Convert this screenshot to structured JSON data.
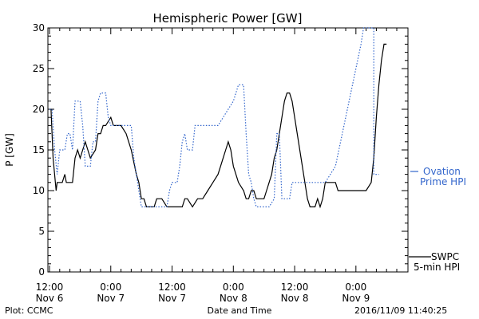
{
  "chart_data": {
    "type": "line",
    "title": "Hemispheric Power [GW]",
    "xlabel": "Date and Time",
    "ylabel": "P [GW]",
    "ylim": [
      0,
      30
    ],
    "xlim_hours": [
      0,
      68
    ],
    "yticks": [
      0,
      5,
      10,
      15,
      20,
      25,
      30
    ],
    "xticks": [
      {
        "hour": 0,
        "line1": "12:00",
        "line2": "Nov 6"
      },
      {
        "hour": 12,
        "line1": "0:00",
        "line2": "Nov 7"
      },
      {
        "hour": 24,
        "line1": "12:00",
        "line2": "Nov 7"
      },
      {
        "hour": 36,
        "line1": "0:00",
        "line2": "Nov 8"
      },
      {
        "hour": 48,
        "line1": "12:00",
        "line2": "Nov 8"
      },
      {
        "hour": 60,
        "line1": "0:00",
        "line2": "Nov 9"
      }
    ],
    "grid": false,
    "series": [
      {
        "name": "SWPC 5-min HPI",
        "label_lines": [
          "SWPC",
          "5-min HPI"
        ],
        "color": "#000000",
        "style": "solid",
        "points": [
          [
            0,
            20
          ],
          [
            0.3,
            20
          ],
          [
            0.5,
            17
          ],
          [
            0.7,
            14
          ],
          [
            1,
            12
          ],
          [
            1.3,
            10
          ],
          [
            1.5,
            11
          ],
          [
            2.5,
            11
          ],
          [
            3,
            12
          ],
          [
            3.3,
            11
          ],
          [
            4.5,
            11
          ],
          [
            5,
            14
          ],
          [
            5.5,
            15
          ],
          [
            6,
            14
          ],
          [
            6.5,
            15
          ],
          [
            7,
            16
          ],
          [
            7.5,
            15
          ],
          [
            8,
            14
          ],
          [
            9,
            15
          ],
          [
            9.5,
            17
          ],
          [
            10,
            17
          ],
          [
            10.5,
            18
          ],
          [
            11,
            18
          ],
          [
            12,
            19
          ],
          [
            12.5,
            18
          ],
          [
            13,
            18
          ],
          [
            14,
            18
          ],
          [
            15,
            17
          ],
          [
            15.5,
            16
          ],
          [
            16,
            15
          ],
          [
            17,
            12
          ],
          [
            17.5,
            11
          ],
          [
            18,
            9
          ],
          [
            18.5,
            9
          ],
          [
            19,
            8
          ],
          [
            20.5,
            8
          ],
          [
            21,
            9
          ],
          [
            22,
            9
          ],
          [
            23,
            8
          ],
          [
            26,
            8
          ],
          [
            26.5,
            9
          ],
          [
            27,
            9
          ],
          [
            28,
            8
          ],
          [
            29,
            9
          ],
          [
            30,
            9
          ],
          [
            31,
            10
          ],
          [
            32,
            11
          ],
          [
            33,
            12
          ],
          [
            33.5,
            13
          ],
          [
            34,
            14
          ],
          [
            34.5,
            15
          ],
          [
            35,
            16
          ],
          [
            35.5,
            15
          ],
          [
            36,
            13
          ],
          [
            36.5,
            12
          ],
          [
            37,
            11
          ],
          [
            38,
            10
          ],
          [
            38.5,
            9
          ],
          [
            39,
            9
          ],
          [
            39.5,
            10
          ],
          [
            40,
            10
          ],
          [
            40.5,
            9
          ],
          [
            42,
            9
          ],
          [
            42.5,
            10
          ],
          [
            43,
            11
          ],
          [
            43.5,
            12
          ],
          [
            44,
            14
          ],
          [
            44.5,
            15
          ],
          [
            45,
            17
          ],
          [
            45.5,
            19
          ],
          [
            46,
            21
          ],
          [
            46.5,
            22
          ],
          [
            47,
            22
          ],
          [
            47.5,
            21
          ],
          [
            48,
            19
          ],
          [
            48.5,
            17
          ],
          [
            49,
            15
          ],
          [
            49.5,
            13
          ],
          [
            50,
            11
          ],
          [
            50.5,
            9
          ],
          [
            51,
            8
          ],
          [
            52,
            8
          ],
          [
            52.5,
            9
          ],
          [
            53,
            8
          ],
          [
            53.5,
            9
          ],
          [
            54,
            11
          ],
          [
            56,
            11
          ],
          [
            56.5,
            10
          ],
          [
            61,
            10
          ],
          [
            62,
            10
          ],
          [
            63,
            11
          ],
          [
            63.5,
            14
          ],
          [
            64,
            19
          ],
          [
            64.5,
            23
          ],
          [
            65,
            26
          ],
          [
            65.5,
            28
          ],
          [
            66,
            28
          ]
        ]
      },
      {
        "name": "Ovation Prime HPI",
        "label_lines": [
          "Ovation",
          "Prime HPI"
        ],
        "color": "#3366cc",
        "style": "dotted",
        "points": [
          [
            0,
            20
          ],
          [
            0.5,
            20
          ],
          [
            1,
            15
          ],
          [
            1.5,
            12
          ],
          [
            2,
            15
          ],
          [
            3,
            15
          ],
          [
            3.5,
            17
          ],
          [
            4,
            17
          ],
          [
            4.5,
            15
          ],
          [
            5,
            21
          ],
          [
            6,
            21
          ],
          [
            6.5,
            18
          ],
          [
            7,
            13
          ],
          [
            8,
            13
          ],
          [
            8.5,
            16
          ],
          [
            9,
            16
          ],
          [
            9.5,
            21
          ],
          [
            10,
            22
          ],
          [
            11,
            22
          ],
          [
            11.5,
            19
          ],
          [
            12,
            18
          ],
          [
            16,
            18
          ],
          [
            16.5,
            14
          ],
          [
            17,
            12
          ],
          [
            17.5,
            10
          ],
          [
            18,
            8
          ],
          [
            23,
            8
          ],
          [
            23.5,
            10
          ],
          [
            24,
            11
          ],
          [
            25,
            11
          ],
          [
            25.5,
            13
          ],
          [
            26,
            16
          ],
          [
            26.5,
            17
          ],
          [
            27,
            15
          ],
          [
            28,
            15
          ],
          [
            28.5,
            18
          ],
          [
            33,
            18
          ],
          [
            34,
            19
          ],
          [
            35,
            20
          ],
          [
            36,
            21
          ],
          [
            37,
            23
          ],
          [
            38,
            23
          ],
          [
            38.5,
            17
          ],
          [
            39,
            12
          ],
          [
            39.5,
            11
          ],
          [
            40,
            9
          ],
          [
            40.5,
            8
          ],
          [
            41,
            8
          ],
          [
            43,
            8
          ],
          [
            44,
            9
          ],
          [
            44.5,
            17
          ],
          [
            45,
            17
          ],
          [
            45.5,
            9
          ],
          [
            47,
            9
          ],
          [
            47.5,
            11
          ],
          [
            53,
            11
          ],
          [
            54,
            11
          ],
          [
            55,
            12
          ],
          [
            56,
            13
          ],
          [
            57,
            16
          ],
          [
            58,
            19
          ],
          [
            59,
            22
          ],
          [
            60,
            25
          ],
          [
            61,
            28
          ],
          [
            61.5,
            30
          ],
          [
            63.5,
            30
          ],
          [
            63.5,
            12
          ],
          [
            64.5,
            12
          ]
        ]
      }
    ]
  },
  "footer": {
    "left": "Plot: CCMC",
    "center": "Date and Time",
    "right": "2016/11/09 11:40:25"
  }
}
